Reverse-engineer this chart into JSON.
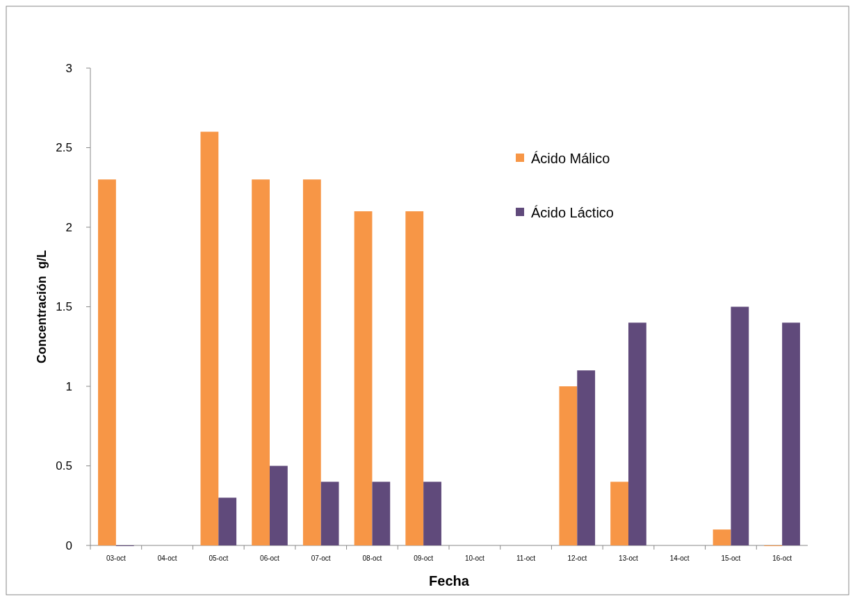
{
  "chart_data": {
    "type": "bar",
    "xlabel": "Fecha",
    "ylabel": "Concentración  g/L",
    "categories": [
      "03-oct",
      "04-oct",
      "05-oct",
      "06-oct",
      "07-oct",
      "08-oct",
      "09-oct",
      "10-oct",
      "11-oct",
      "12-oct",
      "13-oct",
      "14-oct",
      "15-oct",
      "16-oct"
    ],
    "series": [
      {
        "name": "Ácido Málico",
        "color": "#f79646",
        "values": [
          2.3,
          null,
          2.6,
          2.3,
          2.3,
          2.1,
          2.1,
          null,
          null,
          1.0,
          0.4,
          null,
          0.1,
          0
        ]
      },
      {
        "name": "Ácido Láctico",
        "color": "#604a7b",
        "values": [
          0,
          null,
          0.3,
          0.5,
          0.4,
          0.4,
          0.4,
          null,
          null,
          1.1,
          1.4,
          null,
          1.5,
          1.4
        ]
      }
    ],
    "ylim": [
      0,
      3
    ],
    "yticks": [
      0,
      0.5,
      1,
      1.5,
      2,
      2.5,
      3
    ],
    "grid": false,
    "legend": "top right"
  }
}
